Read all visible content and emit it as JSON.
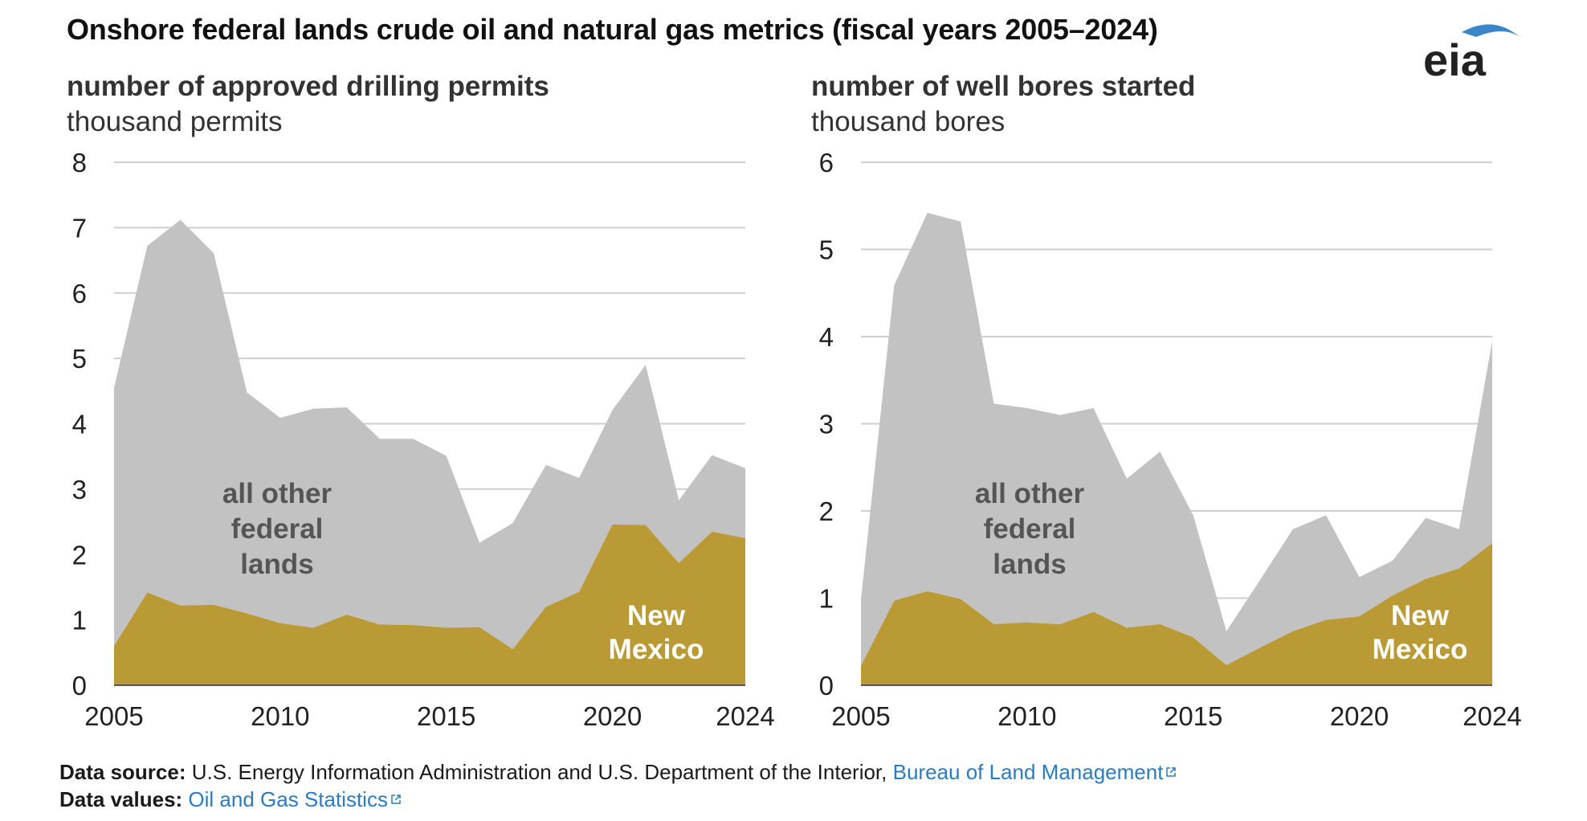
{
  "title": "Onshore federal lands crude oil and natural gas metrics (fiscal years 2005–2024)",
  "logo": {
    "text": "eia",
    "icon": "eia-logo"
  },
  "colors": {
    "other": "#c2c2c2",
    "new_mexico": "#b99a35",
    "grid": "#cfcfcf",
    "link": "#2c7bbf",
    "logo_blue": "#3a86c8"
  },
  "chart_data": [
    {
      "type": "area",
      "stacked": true,
      "title": "number of approved drilling permits",
      "ylabel": "thousand permits",
      "x": [
        2005,
        2006,
        2007,
        2008,
        2009,
        2010,
        2011,
        2012,
        2013,
        2014,
        2015,
        2016,
        2017,
        2018,
        2019,
        2020,
        2021,
        2022,
        2023,
        2024
      ],
      "xticks": [
        "2005",
        "2010",
        "2015",
        "2020",
        "2024"
      ],
      "yticks": [
        "0",
        "1",
        "2",
        "3",
        "4",
        "5",
        "6",
        "7",
        "8"
      ],
      "ylim": [
        0,
        8
      ],
      "grid": true,
      "series": [
        {
          "name": "New Mexico",
          "label_lines": [
            "New",
            "Mexico"
          ],
          "values": [
            0.6,
            1.42,
            1.22,
            1.23,
            1.1,
            0.95,
            0.88,
            1.08,
            0.93,
            0.92,
            0.88,
            0.89,
            0.55,
            1.2,
            1.43,
            2.46,
            2.45,
            1.87,
            2.35,
            2.25
          ]
        },
        {
          "name": "all other federal lands",
          "label_lines": [
            "all other",
            "federal",
            "lands"
          ],
          "values": [
            3.95,
            5.3,
            5.9,
            5.38,
            3.38,
            3.14,
            3.35,
            3.17,
            2.84,
            2.85,
            2.63,
            1.29,
            1.93,
            2.17,
            1.74,
            1.75,
            2.45,
            0.96,
            1.17,
            1.07
          ]
        }
      ]
    },
    {
      "type": "area",
      "stacked": true,
      "title": "number of well bores started",
      "ylabel": "thousand bores",
      "x": [
        2005,
        2006,
        2007,
        2008,
        2009,
        2010,
        2011,
        2012,
        2013,
        2014,
        2015,
        2016,
        2017,
        2018,
        2019,
        2020,
        2021,
        2022,
        2023,
        2024
      ],
      "xticks": [
        "2005",
        "2010",
        "2015",
        "2020",
        "2024"
      ],
      "yticks": [
        "0",
        "1",
        "2",
        "3",
        "4",
        "5",
        "6"
      ],
      "ylim": [
        0,
        6
      ],
      "grid": true,
      "series": [
        {
          "name": "New Mexico",
          "label_lines": [
            "New",
            "Mexico"
          ],
          "values": [
            0.22,
            0.97,
            1.08,
            0.99,
            0.7,
            0.72,
            0.7,
            0.84,
            0.66,
            0.7,
            0.55,
            0.23,
            0.43,
            0.62,
            0.75,
            0.79,
            1.03,
            1.22,
            1.34,
            1.63
          ]
        },
        {
          "name": "all other federal lands",
          "label_lines": [
            "all other",
            "federal",
            "lands"
          ],
          "values": [
            0.76,
            3.62,
            4.34,
            4.33,
            2.53,
            2.46,
            2.4,
            2.34,
            1.71,
            1.98,
            1.4,
            0.39,
            0.77,
            1.17,
            1.2,
            0.45,
            0.4,
            0.7,
            0.45,
            2.32
          ]
        }
      ]
    }
  ],
  "footer": {
    "source_label": "Data source:",
    "source_text": "U.S. Energy Information Administration and U.S. Department of the Interior,",
    "source_link": "Bureau of Land Management",
    "values_label": "Data values:",
    "values_link": "Oil and Gas Statistics"
  }
}
